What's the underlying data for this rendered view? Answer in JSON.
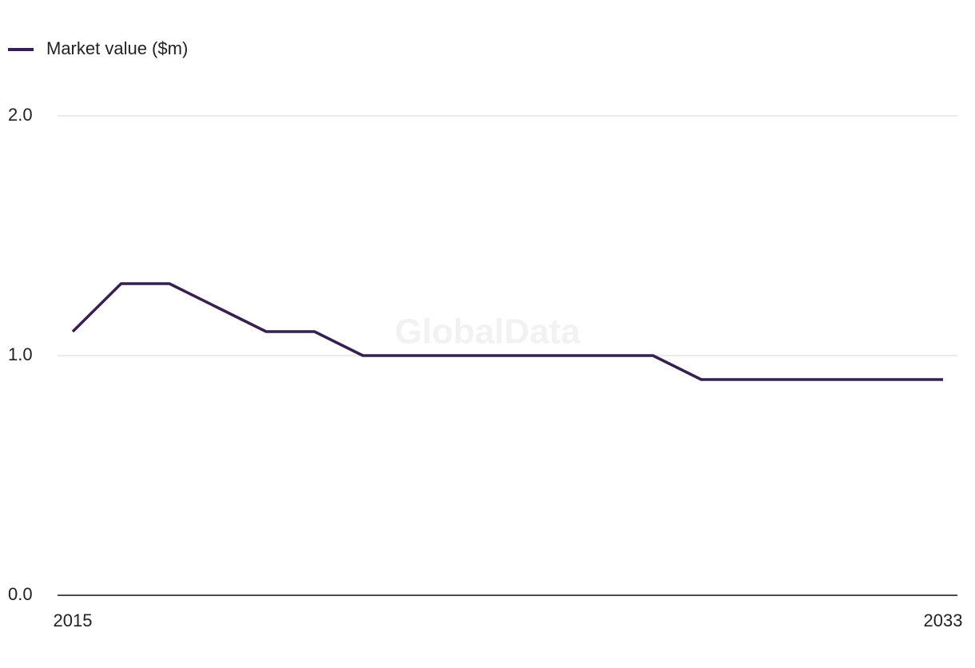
{
  "chart_data": {
    "type": "line",
    "watermark": "GlobalData",
    "x": [
      2015,
      2016,
      2017,
      2018,
      2019,
      2020,
      2021,
      2022,
      2023,
      2024,
      2025,
      2026,
      2027,
      2028,
      2029,
      2030,
      2031,
      2032,
      2033
    ],
    "series": [
      {
        "name": "Market value ($m)",
        "color": "#35204f",
        "values": [
          1.1,
          1.3,
          1.3,
          1.2,
          1.1,
          1.1,
          1.0,
          1.0,
          1.0,
          1.0,
          1.0,
          1.0,
          1.0,
          0.9,
          0.9,
          0.9,
          0.9,
          0.9,
          0.9
        ]
      }
    ],
    "xlim": [
      2015,
      2033
    ],
    "xticks": [
      2015,
      2033
    ],
    "ylim": [
      0,
      2
    ],
    "yticks": [
      {
        "value": 0,
        "label": "0.0"
      },
      {
        "value": 1,
        "label": "1.0"
      },
      {
        "value": 2,
        "label": "2.0"
      }
    ],
    "grid": true,
    "legend": "top-left"
  }
}
